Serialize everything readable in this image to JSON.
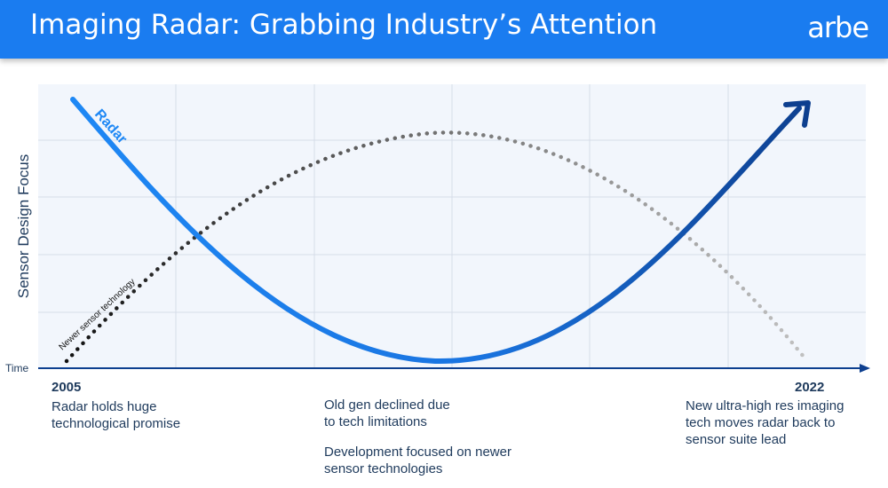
{
  "header": {
    "title": "Imaging Radar: Grabbing Industry’s Attention",
    "logo": "arbe"
  },
  "axes": {
    "ylabel": "Sensor Design Focus",
    "xlabel": "Time"
  },
  "curves": {
    "radar_label": "Radar",
    "newer_label": "Newer sensor technology"
  },
  "timeline": {
    "start_year": "2005",
    "end_year": "2022",
    "start_note_1": "Radar holds huge",
    "start_note_2": "technological promise",
    "mid_note_1": "Old gen declined due",
    "mid_note_2": "to tech limitations",
    "mid_note_3": "Development focused on newer",
    "mid_note_4": "sensor technologies",
    "end_note_1": "New ultra-high res imaging",
    "end_note_2": "tech moves radar back to",
    "end_note_3": "sensor suite lead"
  },
  "colors": {
    "header": "#1a7cf0",
    "radar_start": "#1e88f5",
    "radar_end": "#0d3f8f",
    "newer_start": "#111111",
    "newer_end": "#b8b8b8",
    "text": "#1e3a5c"
  }
}
